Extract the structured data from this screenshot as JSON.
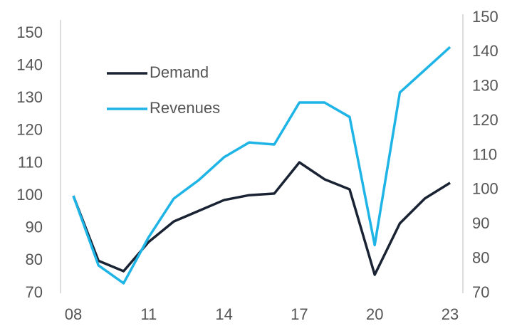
{
  "chart_data": {
    "type": "line",
    "categories": [
      "08",
      null,
      null,
      "11",
      null,
      null,
      "14",
      null,
      null,
      "17",
      null,
      null,
      "20",
      null,
      null,
      "23"
    ],
    "series": [
      {
        "name": "Demand",
        "color": "#1a2333",
        "values": [
          100,
          80,
          76.8,
          85.8,
          92.1,
          95.4,
          98.7,
          100.2,
          100.7,
          110.3,
          105.1,
          102,
          75.7,
          91.5,
          99.2,
          104
        ]
      },
      {
        "name": "Revenues",
        "color": "#1eb4e6",
        "axis": "y2",
        "values": [
          98.3,
          78.1,
          72.9,
          86.3,
          97.5,
          102.9,
          109.5,
          113.8,
          113.2,
          125.4,
          125.4,
          121.2,
          84,
          128.3,
          134.9,
          141.5
        ]
      }
    ],
    "ylim": [
      70,
      150
    ],
    "yticks": [
      70,
      80,
      90,
      100,
      110,
      120,
      130,
      140,
      150
    ],
    "y2lim": [
      70,
      150
    ],
    "y2ticks": [
      70,
      80,
      90,
      100,
      110,
      120,
      130,
      140,
      150
    ],
    "legend": "upper left"
  }
}
